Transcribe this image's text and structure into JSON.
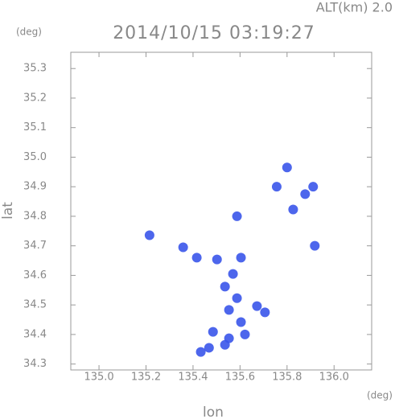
{
  "chart_data": {
    "type": "scatter",
    "title": "2014/10/15 03:19:27",
    "subtitle": "ALT(km) 2.0",
    "y_unit": "(deg)",
    "x_unit": "(deg)",
    "xlabel": "lon",
    "ylabel": "lat",
    "color": "#3a55ea",
    "x": [
      135.8,
      135.756,
      135.877,
      135.911,
      135.826,
      135.587,
      135.215,
      135.358,
      135.918,
      135.416,
      135.502,
      135.604,
      135.57,
      135.536,
      135.587,
      135.672,
      135.553,
      135.604,
      135.485,
      135.553,
      135.621,
      135.536,
      135.468,
      135.433,
      135.706
    ],
    "values": [
      34.965,
      34.9,
      34.875,
      34.9,
      34.823,
      34.8,
      34.736,
      34.695,
      34.7,
      34.66,
      34.654,
      34.66,
      34.605,
      34.562,
      34.523,
      34.496,
      34.483,
      34.442,
      34.409,
      34.387,
      34.4,
      34.365,
      34.355,
      34.341,
      34.475
    ],
    "xlim": [
      134.88,
      136.16
    ],
    "ylim": [
      34.28,
      35.355
    ],
    "xticks": [
      {
        "value": 135,
        "label": "135.0"
      },
      135.2,
      135.4,
      135.6,
      135.8,
      {
        "value": 136,
        "label": "136.0"
      }
    ],
    "yticks": [
      34.3,
      34.4,
      34.5,
      34.6,
      34.7,
      34.8,
      34.9,
      {
        "value": 35,
        "label": "35.0"
      },
      35.1,
      35.2,
      35.3
    ]
  }
}
